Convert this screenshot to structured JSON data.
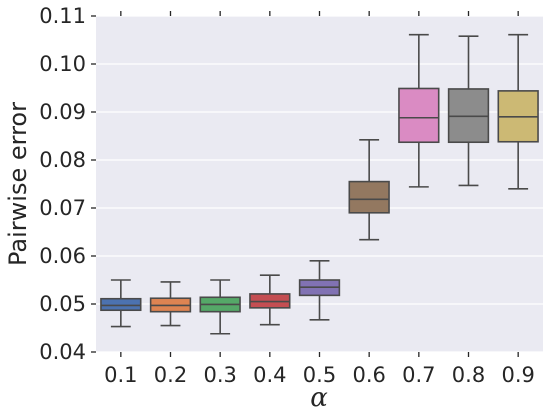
{
  "chart_data": {
    "type": "box",
    "xlabel": "α",
    "ylabel": "Pairwise error",
    "ylim": [
      0.04,
      0.11
    ],
    "yticks": [
      "0.04",
      "0.05",
      "0.06",
      "0.07",
      "0.08",
      "0.09",
      "0.10",
      "0.11"
    ],
    "categories": [
      "0.1",
      "0.2",
      "0.3",
      "0.4",
      "0.5",
      "0.6",
      "0.7",
      "0.8",
      "0.9"
    ],
    "grid": true,
    "background": "#eaeaf2",
    "boxes": [
      {
        "category": "0.1",
        "whisker_low": 0.0453,
        "q1": 0.0487,
        "median": 0.0497,
        "q3": 0.0511,
        "whisker_high": 0.055,
        "color": "#4c72b0"
      },
      {
        "category": "0.2",
        "whisker_low": 0.0455,
        "q1": 0.0484,
        "median": 0.0497,
        "q3": 0.0512,
        "whisker_high": 0.0546,
        "color": "#dd8452"
      },
      {
        "category": "0.3",
        "whisker_low": 0.0438,
        "q1": 0.0484,
        "median": 0.0499,
        "q3": 0.0514,
        "whisker_high": 0.055,
        "color": "#55a868"
      },
      {
        "category": "0.4",
        "whisker_low": 0.0457,
        "q1": 0.0492,
        "median": 0.0505,
        "q3": 0.0521,
        "whisker_high": 0.056,
        "color": "#c44e52"
      },
      {
        "category": "0.5",
        "whisker_low": 0.0467,
        "q1": 0.0518,
        "median": 0.0535,
        "q3": 0.055,
        "whisker_high": 0.059,
        "color": "#8172b3"
      },
      {
        "category": "0.6",
        "whisker_low": 0.0634,
        "q1": 0.069,
        "median": 0.0718,
        "q3": 0.0755,
        "whisker_high": 0.0842,
        "color": "#937860"
      },
      {
        "category": "0.7",
        "whisker_low": 0.0744,
        "q1": 0.0837,
        "median": 0.0888,
        "q3": 0.0949,
        "whisker_high": 0.1061,
        "color": "#da8bc3"
      },
      {
        "category": "0.8",
        "whisker_low": 0.0747,
        "q1": 0.0837,
        "median": 0.0891,
        "q3": 0.0948,
        "whisker_high": 0.1058,
        "color": "#8c8c8c"
      },
      {
        "category": "0.9",
        "whisker_low": 0.074,
        "q1": 0.0838,
        "median": 0.089,
        "q3": 0.0944,
        "whisker_high": 0.1061,
        "color": "#ccb974"
      }
    ]
  }
}
